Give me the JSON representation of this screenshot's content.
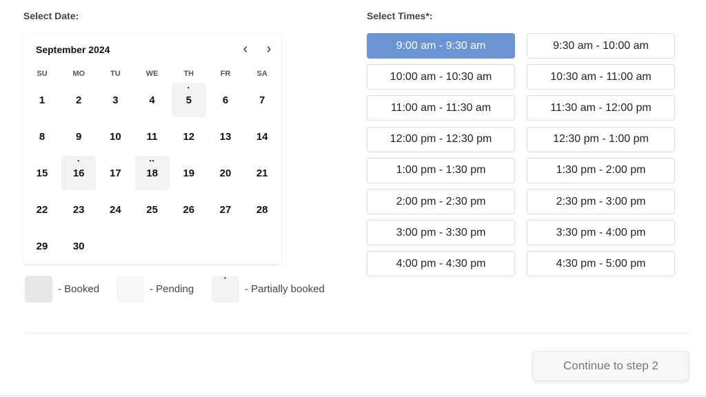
{
  "date_label": "Select Date:",
  "times_label": "Select Times*:",
  "calendar": {
    "month_title": "September 2024",
    "prev_icon": "chevron-left-icon",
    "next_icon": "chevron-right-icon",
    "weekdays": [
      "SU",
      "MO",
      "TU",
      "WE",
      "TH",
      "FR",
      "SA"
    ],
    "first_weekday": 0,
    "days": 30,
    "marked_days": {
      "5": 1,
      "16": 1,
      "18": 2
    }
  },
  "legend": [
    {
      "label": "- Booked",
      "color": "#e6e7e9"
    },
    {
      "label": "- Pending",
      "color": "#f6f7f6"
    },
    {
      "label": "- Partially booked",
      "color": "#f3f3f3"
    }
  ],
  "slots": [
    "9:00 am - 9:30 am",
    "9:30 am - 10:00 am",
    "10:00 am - 10:30 am",
    "10:30 am - 11:00 am",
    "11:00 am - 11:30 am",
    "11:30 am - 12:00 pm",
    "12:00 pm - 12:30 pm",
    "12:30 pm - 1:00 pm",
    "1:00 pm - 1:30 pm",
    "1:30 pm - 2:00 pm",
    "2:00 pm - 2:30 pm",
    "2:30 pm - 3:00 pm",
    "3:00 pm - 3:30 pm",
    "3:30 pm - 4:00 pm",
    "4:00 pm - 4:30 pm",
    "4:30 pm - 5:00 pm"
  ],
  "selected_slot": "9:00 am - 9:30 am",
  "accent": "#6a94d4",
  "continue_label": "Continue to step 2"
}
